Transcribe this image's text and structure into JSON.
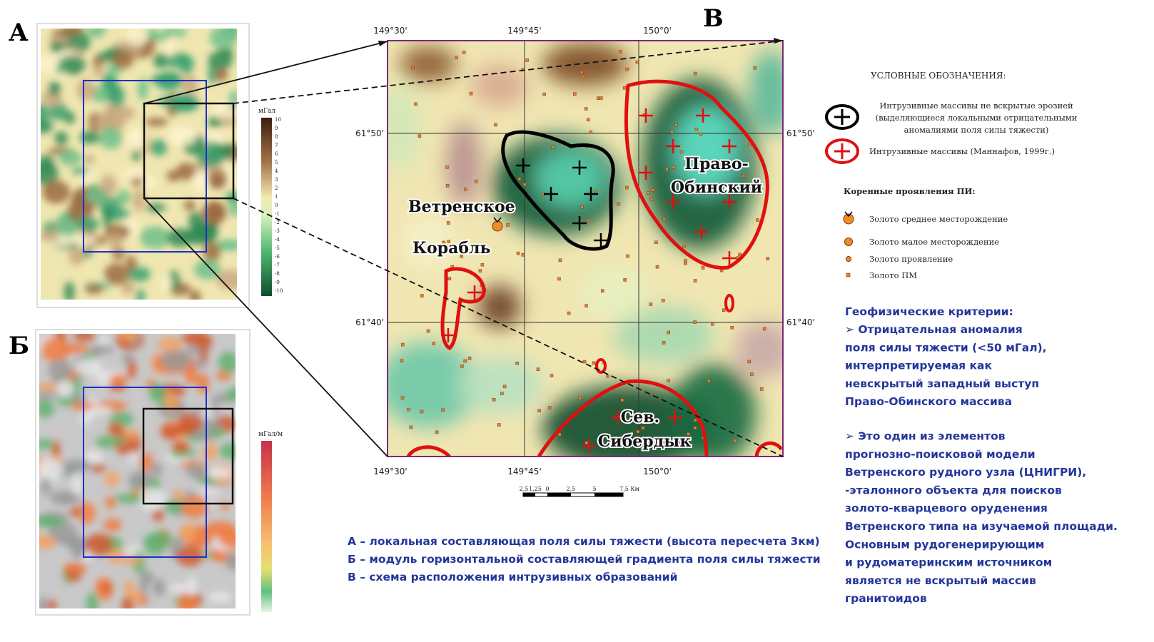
{
  "panels": {
    "a": "А",
    "b": "Б",
    "c": "В"
  },
  "map_a": {
    "unit": "мГал",
    "scale": [
      "10",
      "9",
      "8",
      "7",
      "6",
      "5",
      "4",
      "3",
      "2",
      "1",
      "0",
      "-1",
      "-2",
      "-3",
      "-4",
      "-5",
      "-6",
      "-7",
      "-8",
      "-9",
      "-10"
    ]
  },
  "map_b": {
    "unit": "мГал/м"
  },
  "main_map": {
    "top_ticks": [
      "149°30'",
      "149°45'",
      "150°0'"
    ],
    "bottom_ticks": [
      "149°30'",
      "149°45'",
      "150°0'"
    ],
    "left_ticks": [
      "61°50'",
      "61°40'"
    ],
    "right_ticks": [
      "61°50'",
      "61°40'"
    ],
    "places": [
      "Ветренское",
      "Корабль",
      "Право-",
      "Обинский",
      "Сев.",
      "Сибердык"
    ],
    "scale_bar": [
      "2,5",
      "1,25",
      "0",
      "2,5",
      "5",
      "7,5 Км"
    ]
  },
  "legend": {
    "title": "УСЛОВНЫЕ ОБОЗНАЧЕНИЯ:",
    "intrusive": [
      {
        "lines": [
          "Интрузивные массивы не вскрытые эрозией",
          "(выделяющиеся локальными отрицательными",
          "аномалиями поля силы тяжести)"
        ]
      },
      {
        "lines": [
          "Интрузивные массивы (Маннафов, 1999г.)"
        ]
      }
    ],
    "deposits_title": "Коренные проявления ПИ:",
    "deposits": [
      "Золото среднее месторождение",
      "Золото малое месторождение",
      "Золото проявление",
      "Золото ПМ"
    ]
  },
  "captions": [
    "А – локальная составляющая поля силы тяжести (высота пересчета 3км)",
    "Б – модуль горизонтальной составляющей градиента поля силы тяжести",
    "В – схема расположения интрузивных образований"
  ],
  "criteria": {
    "title": "Геофизические критерии:",
    "paragraphs": [
      [
        "➢ Отрицательная аномалия",
        "поля силы тяжести (<50 мГал),",
        "интерпретируемая как",
        "невскрытый западный выступ",
        "Право-Обинского массива"
      ],
      [
        "➢ Это один из элементов",
        "прогнозно-поисковой модели",
        "Ветренского рудного узла (ЦНИГРИ),",
        "-эталонного объекта для поисков",
        "золото-кварцевого оруденения",
        "Ветренского типа на изучаемой площади.",
        "Основным рудогенерирующим",
        "и рудоматеринским источником",
        "является не вскрытый массив",
        "гранитоидов"
      ]
    ]
  }
}
